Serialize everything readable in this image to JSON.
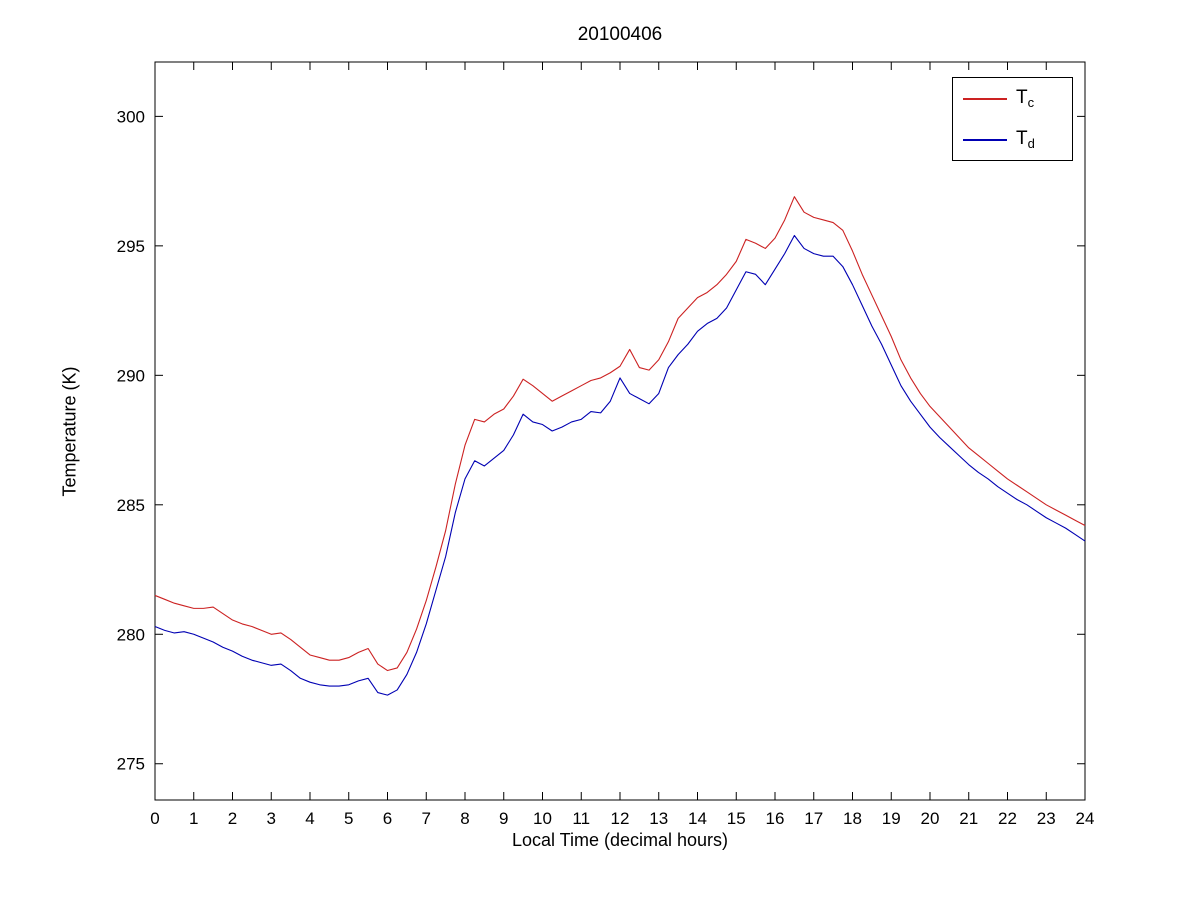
{
  "figure": {
    "background": "#ffffff"
  },
  "chart_data": {
    "type": "line",
    "title": "20100406",
    "xlabel": "Local Time (decimal hours)",
    "ylabel": "Temperature (K)",
    "xlim": [
      0,
      24
    ],
    "ylim": [
      273.6,
      302.1
    ],
    "x_ticks": [
      0,
      1,
      2,
      3,
      4,
      5,
      6,
      7,
      8,
      9,
      10,
      11,
      12,
      13,
      14,
      15,
      16,
      17,
      18,
      19,
      20,
      21,
      22,
      23,
      24
    ],
    "y_ticks": [
      275,
      280,
      285,
      290,
      295,
      300
    ],
    "grid": false,
    "axis_color": "#000000",
    "legend": {
      "position": "top-right",
      "entries": [
        {
          "main": "T",
          "sub": "c",
          "color": "#cc2222"
        },
        {
          "main": "T",
          "sub": "d",
          "color": "#0000b3"
        }
      ]
    },
    "x": [
      0,
      0.25,
      0.5,
      0.75,
      1,
      1.25,
      1.5,
      1.75,
      2,
      2.25,
      2.5,
      2.75,
      3,
      3.25,
      3.5,
      3.75,
      4,
      4.25,
      4.5,
      4.75,
      5,
      5.25,
      5.5,
      5.75,
      6,
      6.25,
      6.5,
      6.75,
      7,
      7.25,
      7.5,
      7.75,
      8,
      8.25,
      8.5,
      8.75,
      9,
      9.25,
      9.5,
      9.75,
      10,
      10.25,
      10.5,
      10.75,
      11,
      11.25,
      11.5,
      11.75,
      12,
      12.25,
      12.5,
      12.75,
      13,
      13.25,
      13.5,
      13.75,
      14,
      14.25,
      14.5,
      14.75,
      15,
      15.25,
      15.5,
      15.75,
      16,
      16.25,
      16.5,
      16.75,
      17,
      17.25,
      17.5,
      17.75,
      18,
      18.25,
      18.5,
      18.75,
      19,
      19.25,
      19.5,
      19.75,
      20,
      20.25,
      20.5,
      20.75,
      21,
      21.25,
      21.5,
      21.75,
      22,
      22.25,
      22.5,
      22.75,
      23,
      23.25,
      23.5,
      23.75,
      24
    ],
    "series": [
      {
        "name": "Tc",
        "color": "#cc2222",
        "values": [
          281.5,
          281.35,
          281.2,
          281.1,
          281.0,
          281.0,
          281.05,
          280.8,
          280.55,
          280.4,
          280.3,
          280.15,
          280.0,
          280.05,
          279.8,
          279.5,
          279.2,
          279.1,
          279.0,
          279.0,
          279.1,
          279.3,
          279.45,
          278.85,
          278.6,
          278.7,
          279.3,
          280.2,
          281.3,
          282.6,
          284.0,
          285.8,
          287.3,
          288.3,
          288.2,
          288.5,
          288.7,
          289.2,
          289.85,
          289.6,
          289.3,
          289.0,
          289.2,
          289.4,
          289.6,
          289.8,
          289.9,
          290.1,
          290.35,
          291.0,
          290.3,
          290.2,
          290.6,
          291.3,
          292.2,
          292.6,
          293.0,
          293.2,
          293.5,
          293.9,
          294.4,
          295.25,
          295.1,
          294.9,
          295.3,
          296.0,
          296.9,
          296.3,
          296.1,
          296.0,
          295.9,
          295.6,
          294.8,
          293.9,
          293.1,
          292.3,
          291.5,
          290.6,
          289.9,
          289.3,
          288.8,
          288.4,
          288.0,
          287.6,
          287.2,
          286.9,
          286.6,
          286.3,
          286.0,
          285.75,
          285.5,
          285.25,
          285.0,
          284.8,
          284.6,
          284.4,
          284.2
        ]
      },
      {
        "name": "Td",
        "color": "#0000b3",
        "values": [
          280.3,
          280.15,
          280.05,
          280.1,
          280.0,
          279.85,
          279.7,
          279.5,
          279.35,
          279.15,
          279.0,
          278.9,
          278.8,
          278.85,
          278.6,
          278.3,
          278.15,
          278.05,
          278.0,
          278.0,
          278.05,
          278.2,
          278.3,
          277.75,
          277.65,
          277.85,
          278.45,
          279.3,
          280.4,
          281.7,
          283.0,
          284.7,
          286.0,
          286.7,
          286.5,
          286.8,
          287.1,
          287.7,
          288.5,
          288.2,
          288.1,
          287.85,
          288.0,
          288.2,
          288.3,
          288.6,
          288.55,
          289.0,
          289.9,
          289.3,
          289.1,
          288.9,
          289.3,
          290.3,
          290.8,
          291.2,
          291.7,
          292.0,
          292.2,
          292.6,
          293.3,
          294.0,
          293.9,
          293.5,
          294.1,
          294.7,
          295.4,
          294.9,
          294.7,
          294.6,
          294.6,
          294.2,
          293.5,
          292.7,
          291.9,
          291.2,
          290.4,
          289.6,
          289.0,
          288.5,
          288.0,
          287.6,
          287.25,
          286.9,
          286.55,
          286.25,
          286.0,
          285.7,
          285.45,
          285.2,
          285.0,
          284.75,
          284.5,
          284.3,
          284.1,
          283.85,
          283.6
        ]
      }
    ]
  }
}
